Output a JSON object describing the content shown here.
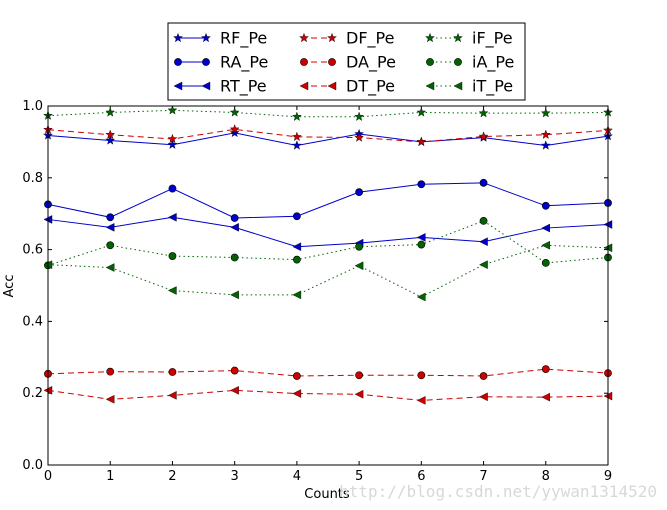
{
  "chart_data": {
    "type": "line",
    "title": "",
    "xlabel": "Counts",
    "ylabel": "Acc",
    "x": [
      0,
      1,
      2,
      3,
      4,
      5,
      6,
      7,
      8,
      9
    ],
    "xlim": [
      0,
      9
    ],
    "ylim": [
      0.0,
      1.0
    ],
    "xticks": [
      "0",
      "1",
      "2",
      "3",
      "4",
      "5",
      "6",
      "7",
      "8",
      "9"
    ],
    "yticks": [
      "0.0",
      "0.2",
      "0.4",
      "0.6",
      "0.8",
      "1.0"
    ],
    "grid": false,
    "legend_position": "top-center",
    "series": [
      {
        "name": "RF_Pe",
        "color": "#0000cc",
        "dash": "solid",
        "marker": "star",
        "values": [
          0.918,
          0.904,
          0.892,
          0.925,
          0.89,
          0.922,
          0.9,
          0.912,
          0.89,
          0.916
        ]
      },
      {
        "name": "RA_Pe",
        "color": "#0000cc",
        "dash": "solid",
        "marker": "circle",
        "values": [
          0.726,
          0.69,
          0.77,
          0.688,
          0.693,
          0.76,
          0.782,
          0.786,
          0.722,
          0.73
        ]
      },
      {
        "name": "RT_Pe",
        "color": "#0000cc",
        "dash": "solid",
        "marker": "triangle-left",
        "values": [
          0.684,
          0.662,
          0.69,
          0.662,
          0.608,
          0.618,
          0.634,
          0.622,
          0.66,
          0.67
        ]
      },
      {
        "name": "DF_Pe",
        "color": "#cc0000",
        "dash": "dashed",
        "marker": "star",
        "values": [
          0.934,
          0.92,
          0.908,
          0.935,
          0.914,
          0.912,
          0.9,
          0.915,
          0.92,
          0.932
        ]
      },
      {
        "name": "DA_Pe",
        "color": "#cc0000",
        "dash": "dashed",
        "marker": "circle",
        "values": [
          0.254,
          0.26,
          0.259,
          0.263,
          0.248,
          0.25,
          0.25,
          0.248,
          0.267,
          0.256
        ]
      },
      {
        "name": "DT_Pe",
        "color": "#cc0000",
        "dash": "dashed",
        "marker": "triangle-left",
        "values": [
          0.208,
          0.183,
          0.194,
          0.208,
          0.199,
          0.197,
          0.18,
          0.19,
          0.189,
          0.192
        ]
      },
      {
        "name": "iF_Pe",
        "color": "#006400",
        "dash": "dotted",
        "marker": "star",
        "values": [
          0.973,
          0.982,
          0.988,
          0.982,
          0.97,
          0.97,
          0.982,
          0.98,
          0.98,
          0.982
        ]
      },
      {
        "name": "iA_Pe",
        "color": "#006400",
        "dash": "dotted",
        "marker": "circle",
        "values": [
          0.556,
          0.612,
          0.582,
          0.578,
          0.572,
          0.608,
          0.614,
          0.68,
          0.563,
          0.578
        ]
      },
      {
        "name": "iT_Pe",
        "color": "#006400",
        "dash": "dotted",
        "marker": "triangle-left",
        "values": [
          0.558,
          0.55,
          0.486,
          0.474,
          0.474,
          0.555,
          0.468,
          0.558,
          0.612,
          0.605
        ]
      }
    ],
    "watermark": "http://blog.csdn.net/yywan1314520"
  }
}
